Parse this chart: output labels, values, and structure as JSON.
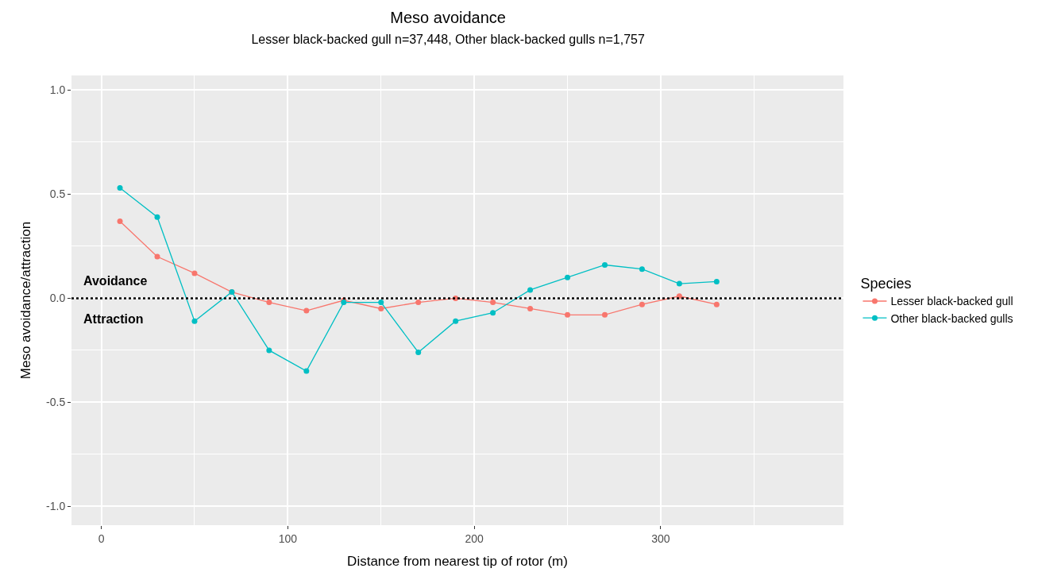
{
  "chart_data": {
    "type": "line",
    "title": "Meso avoidance",
    "subtitle": "Lesser black-backed gull n=37,448, Other black-backed gulls n=1,757",
    "xlabel": "Distance from nearest tip of rotor (m)",
    "ylabel": "Meso avoidance/attraction",
    "legend_title": "Species",
    "x": [
      10,
      30,
      50,
      70,
      90,
      110,
      130,
      150,
      170,
      190,
      210,
      230,
      250,
      270,
      290,
      310,
      330
    ],
    "series": [
      {
        "name": "Lesser black-backed gull",
        "color": "#f8766d",
        "values": [
          0.37,
          0.2,
          0.12,
          0.03,
          -0.02,
          -0.06,
          -0.01,
          -0.05,
          -0.02,
          0.0,
          -0.02,
          -0.05,
          -0.08,
          -0.08,
          -0.03,
          0.01,
          -0.03
        ]
      },
      {
        "name": "Other black-backed gulls",
        "color": "#00bfc4",
        "values": [
          0.53,
          0.39,
          -0.11,
          0.03,
          -0.25,
          -0.35,
          -0.02,
          -0.02,
          -0.26,
          -0.11,
          -0.07,
          0.04,
          0.1,
          0.16,
          0.14,
          0.07,
          0.08
        ]
      }
    ],
    "xlim": [
      -16,
      398
    ],
    "ylim": [
      -1.09,
      1.07
    ],
    "xticks": [
      0,
      100,
      200,
      300
    ],
    "yticks": [
      {
        "value": -1,
        "label": "-1.0"
      },
      {
        "value": -0.5,
        "label": "-0.5"
      },
      {
        "value": 0,
        "label": "0.0"
      },
      {
        "value": 0.5,
        "label": "0.5"
      },
      {
        "value": 1,
        "label": "1.0"
      }
    ],
    "ref_lines": [
      {
        "axis": "y",
        "value": 0,
        "color": "#000000",
        "line_style": "dotted"
      }
    ],
    "annotations": [
      "Avoidance",
      "Attraction"
    ],
    "grid": true,
    "legend": "right",
    "marker": "circle",
    "line_style": "solid"
  }
}
